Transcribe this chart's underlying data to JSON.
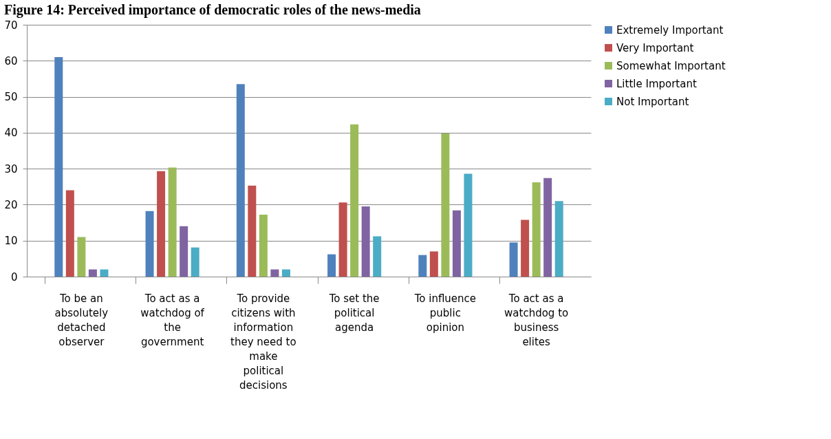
{
  "chart_data": {
    "type": "bar",
    "title": "Figure 14: Perceived importance of democratic roles of the news-media",
    "categories": [
      "To be an absolutely detached observer",
      "To act as a watchdog of the government",
      "To provide citizens with information they need to make political decisions",
      "To set the political agenda",
      "To influence public opinion",
      "To act as a watchdog to business elites"
    ],
    "series": [
      {
        "name": "Extremely Important",
        "color": "#4f81bd",
        "values": [
          61,
          18.2,
          53.5,
          6.2,
          6,
          9.5
        ]
      },
      {
        "name": "Very Important",
        "color": "#c0504d",
        "values": [
          24,
          29.3,
          25.3,
          20.6,
          7,
          15.8
        ]
      },
      {
        "name": "Somewhat Important",
        "color": "#9bbb59",
        "values": [
          11,
          30.3,
          17.2,
          42.3,
          39.8,
          26.2
        ]
      },
      {
        "name": "Little Important",
        "color": "#8064a2",
        "values": [
          2,
          14,
          2,
          19.5,
          18.4,
          27.4
        ]
      },
      {
        "name": "Not Important",
        "color": "#4bacc6",
        "values": [
          2,
          8.1,
          2,
          11.2,
          28.6,
          21
        ]
      }
    ],
    "ylim": [
      0,
      70
    ],
    "yticks": [
      0,
      10,
      20,
      30,
      40,
      50,
      60,
      70
    ],
    "grid": "y",
    "legend": "right"
  }
}
